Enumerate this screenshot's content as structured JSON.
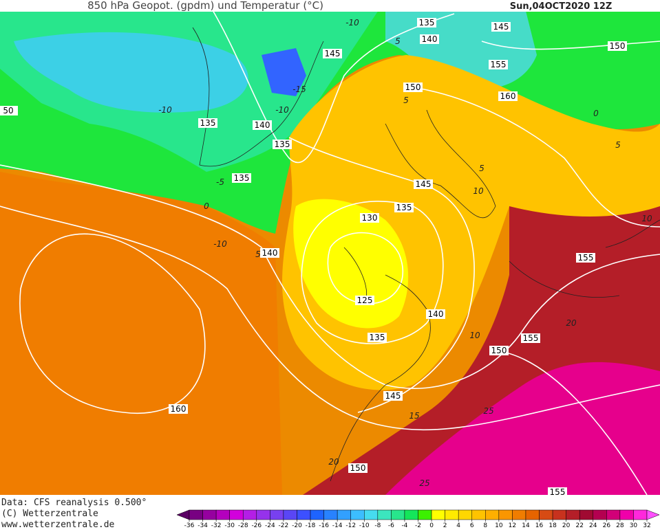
{
  "header": {
    "title": "850 hPa Geopot. (gpdm) und Temperatur (°C)",
    "date": "Sun,04OCT2020 12Z"
  },
  "map": {
    "geopotential_labels": [
      "135",
      "145",
      "140",
      "145",
      "150",
      "155",
      "150",
      "160",
      "135",
      "140",
      "135",
      "135",
      "145",
      "135",
      "130",
      "140",
      "155",
      "125",
      "140",
      "135",
      "155",
      "150",
      "145",
      "160",
      "150",
      "155",
      "50"
    ],
    "temperature_labels": [
      "-10",
      "5",
      "-15",
      "-10",
      "-10",
      "-5",
      "0",
      "-10",
      "5",
      "5",
      "5",
      "10",
      "0",
      "5",
      "10",
      "15",
      "20",
      "25",
      "25",
      "10",
      "20"
    ]
  },
  "footer": {
    "source": "Data: CFS reanalysis 0.500°",
    "copyright": "(C) Wetterzentrale",
    "url": "www.wetterzentrale.de"
  },
  "colorbar": {
    "ticks": [
      -36,
      -34,
      -32,
      -30,
      -28,
      -26,
      -24,
      -22,
      -20,
      -18,
      -16,
      -14,
      -12,
      -10,
      -8,
      -6,
      -4,
      -2,
      0,
      2,
      4,
      6,
      8,
      10,
      12,
      14,
      16,
      18,
      20,
      22,
      24,
      26,
      28,
      30,
      32
    ],
    "colors": [
      "#5a0064",
      "#780082",
      "#9600a0",
      "#b400be",
      "#d200dc",
      "#b41ee6",
      "#9632eb",
      "#7840f0",
      "#5a46f5",
      "#3c50ff",
      "#1e64ff",
      "#2882ff",
      "#32a0ff",
      "#3cbeff",
      "#46dcf0",
      "#3ce6be",
      "#28e68c",
      "#14e65a",
      "#3cf000",
      "#ffff00",
      "#ffeb00",
      "#ffd700",
      "#ffc300",
      "#ffaf00",
      "#fa9600",
      "#f07d00",
      "#e66400",
      "#d74b14",
      "#c8321e",
      "#b41e28",
      "#a00a32",
      "#b40050",
      "#d20078",
      "#f000aa",
      "#ff28dc",
      "#ff50ff"
    ]
  }
}
